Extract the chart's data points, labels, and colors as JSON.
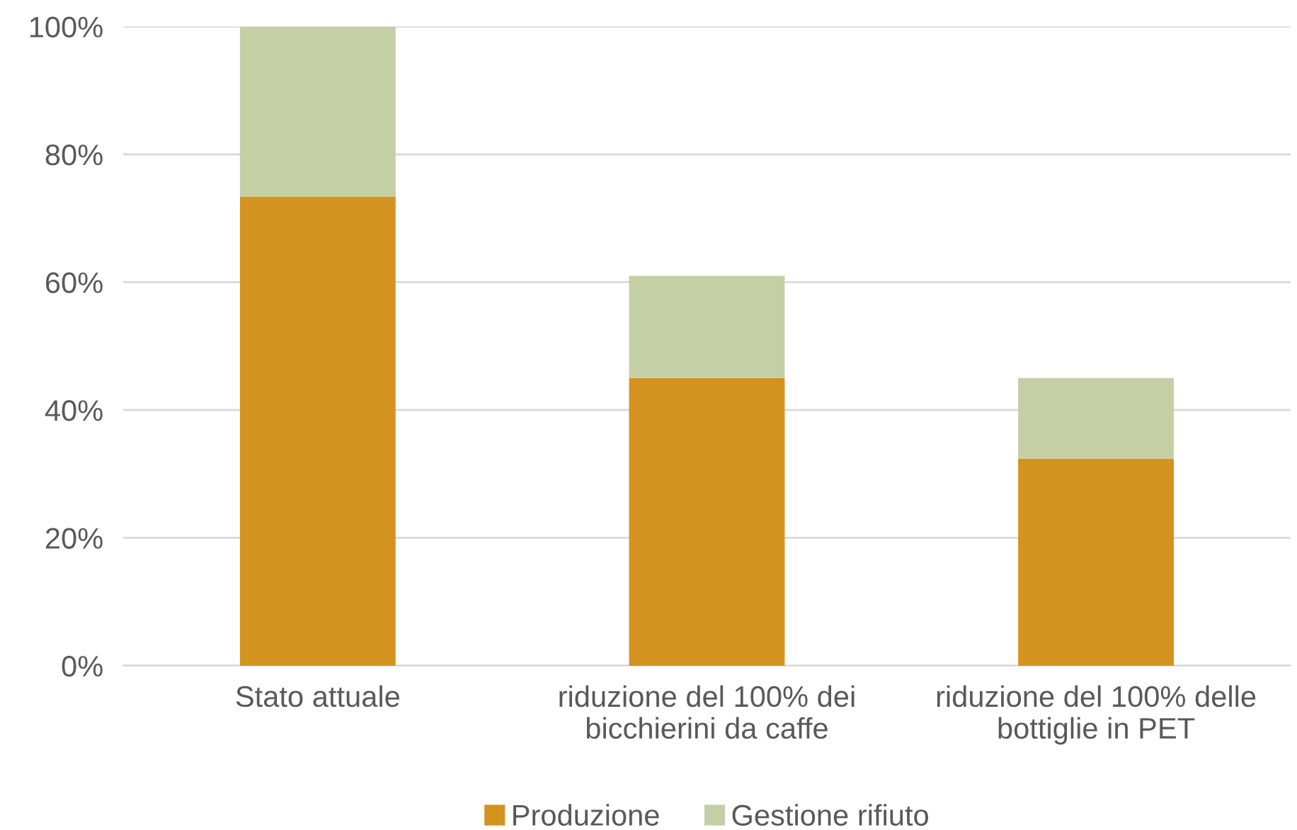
{
  "chart_data": {
    "type": "bar",
    "stacked": true,
    "categories": [
      "Stato attuale",
      "riduzione del 100% dei bicchierini da caffe",
      "riduzione del 100% delle bottiglie in PET"
    ],
    "series": [
      {
        "name": "Produzione",
        "color": "#d4921f",
        "values": [
          73.4,
          45.0,
          32.4
        ]
      },
      {
        "name": "Gestione rifiuto",
        "color": "#c4cfa5",
        "values": [
          26.6,
          16.0,
          12.6
        ]
      }
    ],
    "ylim": [
      0,
      100
    ],
    "yticks": [
      {
        "value": 0,
        "label": "0%"
      },
      {
        "value": 20,
        "label": "20%"
      },
      {
        "value": 40,
        "label": "40%"
      },
      {
        "value": 60,
        "label": "60%"
      },
      {
        "value": 80,
        "label": "80%"
      },
      {
        "value": 100,
        "label": "100%"
      }
    ],
    "grid": "y",
    "legend": "bottom"
  }
}
